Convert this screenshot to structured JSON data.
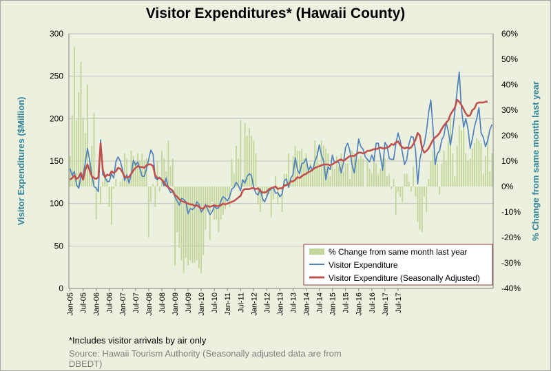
{
  "title": "Visitor Expenditures* (Hawaii County)",
  "footnote": "*Includes visitor arrivals by air only",
  "source": "Source: Hawaii Tourism Authority  (Seasonally adjusted data are from DBEDT)",
  "chart_data": {
    "type": "bar+line",
    "title": "Visitor Expenditures* (Hawaii County)",
    "ylabel_left": "Visitor Expenditures ($Million)",
    "ylabel_right": "% Change from same month last year",
    "ylim_left": [
      0,
      300
    ],
    "ylim_right": [
      -40,
      60
    ],
    "yticks_left": [
      "0",
      "50",
      "100",
      "150",
      "200",
      "250",
      "300"
    ],
    "yticks_right": [
      "-40%",
      "-30%",
      "-20%",
      "-10%",
      "0%",
      "10%",
      "20%",
      "30%",
      "40%",
      "50%",
      "60%"
    ],
    "xticks": [
      "Jan-05",
      "Jul-05",
      "Jan-06",
      "Jul-06",
      "Jan-07",
      "Jul-07",
      "Jan-08",
      "Jul-08",
      "Jan-09",
      "Jul-09",
      "Jan-10",
      "Jul-10",
      "Jan-11",
      "Jul-11",
      "Jan-12",
      "Jul-12",
      "Jan-13",
      "Jul-13",
      "Jan-14",
      "Jul-14",
      "Jan-15",
      "Jul-15",
      "Jan-16",
      "Jul-16",
      "Jan-17",
      "Jul-17"
    ],
    "start": "2005-01",
    "gridlines": true,
    "legend_position": "bottom-right",
    "colors": {
      "bars": "#c3d69b",
      "line": "#4f81bd",
      "sa_line": "#c0504d",
      "grid": "#bfbfbf",
      "axis_text": "#31849b"
    },
    "series": [
      {
        "name": "% Change from same month last year",
        "type": "bar",
        "axis": "right",
        "values": [
          12,
          28,
          55,
          26,
          37,
          49,
          27,
          21,
          40,
          11,
          16,
          29,
          -13,
          -1,
          -7,
          2,
          4,
          3,
          -8,
          -15,
          -1,
          3,
          0,
          2,
          3,
          13,
          11,
          3,
          14,
          12,
          10,
          13,
          10,
          13,
          10,
          11,
          -20,
          -6,
          1,
          -8,
          10,
          -2,
          14,
          11,
          6,
          18,
          8,
          11,
          -31,
          -18,
          -24,
          -29,
          -34,
          -28,
          -31,
          -29,
          -30,
          -30,
          -29,
          -32,
          -34,
          -27,
          -17,
          -10,
          -21,
          -6,
          -13,
          -13,
          -18,
          -13,
          -11,
          -9,
          -4,
          -8,
          11,
          5,
          16,
          11,
          26,
          2,
          25,
          20,
          23,
          20,
          18,
          13,
          -7,
          -10,
          -6,
          -3,
          -4,
          -3,
          -12,
          -5,
          4,
          -7,
          0,
          -10,
          5,
          5,
          13,
          3,
          12,
          16,
          14,
          14,
          15,
          11,
          13,
          7,
          9,
          7,
          18,
          14,
          9,
          18,
          16,
          15,
          13,
          4,
          8,
          7,
          12,
          8,
          13,
          6,
          9,
          9,
          3,
          14,
          13,
          12,
          11,
          12,
          11,
          0,
          11,
          7,
          5,
          12,
          9,
          5,
          7,
          11,
          11,
          4,
          5,
          -1,
          3,
          -11,
          -2,
          -4,
          -6,
          5,
          5,
          2,
          -2,
          8,
          -4,
          -14,
          -17,
          -18,
          -4,
          -10,
          3,
          10,
          14,
          12,
          9,
          -3,
          9,
          14,
          10,
          18,
          27,
          13,
          4,
          16,
          24,
          22,
          24,
          13,
          10,
          11,
          15,
          17,
          19,
          18,
          17,
          5,
          12,
          20,
          6,
          13
        ]
      },
      {
        "name": "Visitor Expenditure",
        "type": "line",
        "axis": "left",
        "values": [
          141,
          133,
          138,
          122,
          118,
          132,
          133,
          148,
          165,
          151,
          133,
          120,
          118,
          114,
          175,
          134,
          131,
          126,
          126,
          135,
          130,
          149,
          155,
          150,
          140,
          127,
          134,
          124,
          134,
          151,
          145,
          149,
          141,
          132,
          132,
          141,
          152,
          163,
          158,
          130,
          128,
          131,
          128,
          121,
          130,
          118,
          113,
          114,
          108,
          103,
          98,
          106,
          105,
          102,
          88,
          94,
          93,
          95,
          102,
          99,
          90,
          93,
          99,
          93,
          87,
          90,
          97,
          94,
          95,
          103,
          108,
          106,
          103,
          108,
          117,
          119,
          125,
          121,
          115,
          128,
          124,
          132,
          135,
          133,
          119,
          112,
          110,
          117,
          106,
          102,
          108,
          115,
          117,
          119,
          112,
          113,
          108,
          111,
          127,
          129,
          119,
          130,
          134,
          154,
          140,
          135,
          147,
          148,
          153,
          139,
          144,
          139,
          150,
          156,
          169,
          157,
          150,
          128,
          143,
          140,
          157,
          148,
          150,
          148,
          136,
          147,
          166,
          171,
          162,
          145,
          136,
          155,
          176,
          167,
          164,
          155,
          152,
          149,
          157,
          150,
          171,
          171,
          155,
          139,
          172,
          168,
          153,
          152,
          152,
          170,
          183,
          174,
          160,
          146,
          152,
          170,
          179,
          178,
          163,
          123,
          152,
          164,
          170,
          185,
          207,
          222,
          189,
          146,
          159,
          162,
          175,
          180,
          196,
          185,
          169,
          186,
          209,
          232,
          255,
          212,
          190,
          200,
          188,
          165,
          176,
          191,
          200,
          213,
          183,
          178,
          167,
          174,
          187,
          193
        ]
      },
      {
        "name": "Visitor Expenditure (Seasonally Adjusted)",
        "type": "line",
        "axis": "left",
        "values": [
          128,
          130,
          133,
          129,
          131,
          136,
          128,
          140,
          146,
          139,
          132,
          130,
          129,
          131,
          171,
          140,
          131,
          134,
          133,
          138,
          136,
          138,
          142,
          141,
          137,
          131,
          131,
          131,
          135,
          139,
          142,
          144,
          143,
          143,
          142,
          145,
          146,
          146,
          144,
          133,
          130,
          130,
          128,
          125,
          121,
          119,
          117,
          115,
          110,
          108,
          105,
          103,
          102,
          101,
          100,
          99,
          99,
          97,
          98,
          96,
          94,
          94,
          97,
          97,
          96,
          97,
          98,
          97,
          97,
          98,
          100,
          99,
          100,
          101,
          102,
          103,
          105,
          107,
          109,
          115,
          117,
          117,
          117,
          118,
          118,
          117,
          118,
          115,
          113,
          113,
          114,
          117,
          118,
          119,
          120,
          117,
          118,
          118,
          121,
          122,
          123,
          126,
          126,
          128,
          131,
          130,
          132,
          134,
          135,
          137,
          138,
          140,
          142,
          143,
          144,
          145,
          146,
          146,
          146,
          145,
          146,
          148,
          149,
          151,
          152,
          150,
          152,
          154,
          156,
          156,
          156,
          158,
          160,
          160,
          159,
          160,
          162,
          162,
          163,
          164,
          164,
          165,
          166,
          165,
          165,
          166,
          167,
          170,
          169,
          172,
          173,
          169,
          166,
          165,
          166,
          165,
          166,
          170,
          175,
          183,
          180,
          165,
          160,
          162,
          165,
          170,
          175,
          178,
          180,
          183,
          188,
          192,
          195,
          198,
          205,
          209,
          213,
          222,
          220,
          216,
          211,
          206,
          203,
          204,
          210,
          212,
          218,
          219,
          219,
          219,
          220,
          220
        ]
      }
    ],
    "legend": [
      "% Change from same month last year",
      "Visitor Expenditure",
      "Visitor Expenditure (Seasonally Adjusted)"
    ]
  }
}
